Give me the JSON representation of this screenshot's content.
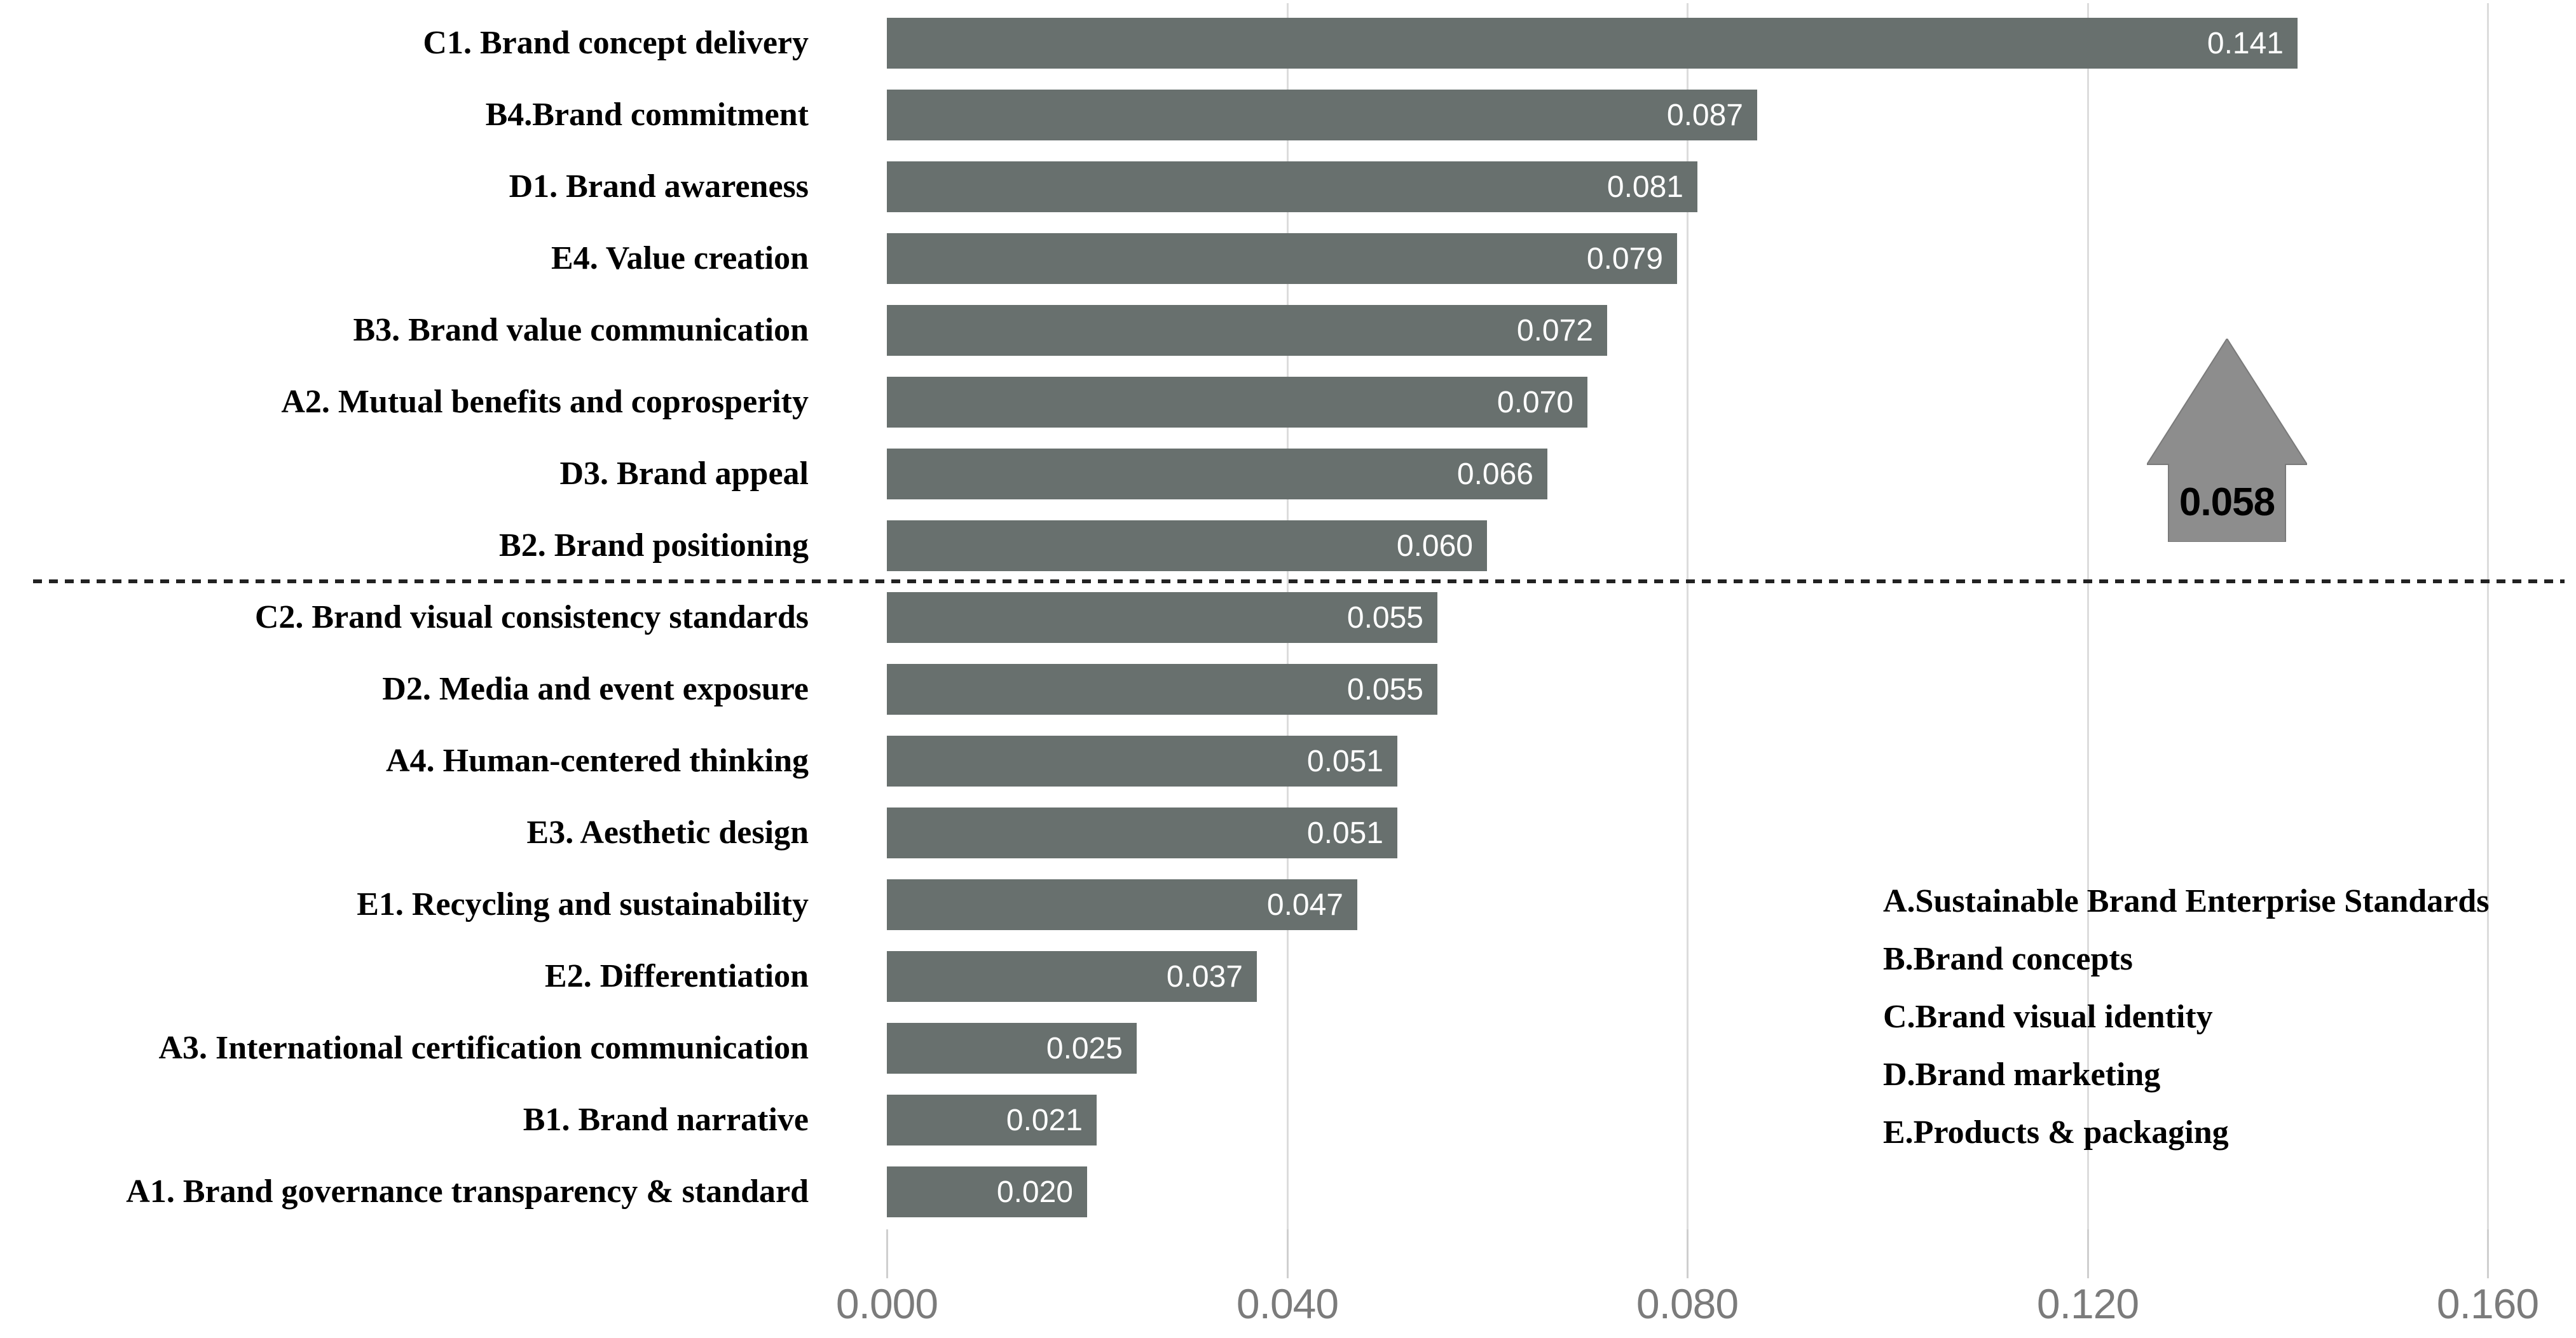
{
  "chart_data": {
    "type": "bar",
    "orientation": "horizontal",
    "title": "",
    "xlabel": "",
    "ylabel": "",
    "xlim": [
      0.0,
      0.16
    ],
    "grid": "vertical-gridlines-on",
    "legend_position": "right-middle",
    "x_ticks": [
      {
        "value": 0.0,
        "label": "0.000"
      },
      {
        "value": 0.04,
        "label": "0.040"
      },
      {
        "value": 0.08,
        "label": "0.080"
      },
      {
        "value": 0.12,
        "label": "0.120"
      },
      {
        "value": 0.16,
        "label": "0.160"
      }
    ],
    "bars": [
      {
        "label": "C1. Brand concept delivery",
        "value": 0.141,
        "value_label": "0.141"
      },
      {
        "label": "B4.Brand commitment",
        "value": 0.087,
        "value_label": "0.087"
      },
      {
        "label": "D1. Brand awareness",
        "value": 0.081,
        "value_label": "0.081"
      },
      {
        "label": "E4. Value creation",
        "value": 0.079,
        "value_label": "0.079"
      },
      {
        "label": "B3. Brand value communication",
        "value": 0.072,
        "value_label": "0.072"
      },
      {
        "label": "A2. Mutual benefits and coprosperity",
        "value": 0.07,
        "value_label": "0.070"
      },
      {
        "label": "D3. Brand appeal",
        "value": 0.066,
        "value_label": "0.066"
      },
      {
        "label": "B2. Brand positioning",
        "value": 0.06,
        "value_label": "0.060"
      },
      {
        "label": "C2. Brand visual consistency standards",
        "value": 0.055,
        "value_label": "0.055"
      },
      {
        "label": "D2. Media and event exposure",
        "value": 0.055,
        "value_label": "0.055"
      },
      {
        "label": "A4. Human-centered thinking",
        "value": 0.051,
        "value_label": "0.051"
      },
      {
        "label": "E3. Aesthetic design",
        "value": 0.051,
        "value_label": "0.051"
      },
      {
        "label": "E1. Recycling and sustainability",
        "value": 0.047,
        "value_label": "0.047"
      },
      {
        "label": "E2. Differentiation",
        "value": 0.037,
        "value_label": "0.037"
      },
      {
        "label": "A3. International certification communication",
        "value": 0.025,
        "value_label": "0.025"
      },
      {
        "label": "B1. Brand narrative",
        "value": 0.021,
        "value_label": "0.021"
      },
      {
        "label": "A1. Brand governance transparency & standard",
        "value": 0.02,
        "value_label": "0.020"
      }
    ],
    "separator": {
      "style": "dashed-horizontal-line",
      "value": 0.058,
      "after_category_index": 7
    },
    "annotation": {
      "shape": "up-arrow",
      "label": "0.058"
    },
    "legend": {
      "items": [
        {
          "label": "A.Sustainable Brand Enterprise Standards"
        },
        {
          "label": "B.Brand concepts"
        },
        {
          "label": "C.Brand visual identity"
        },
        {
          "label": "D.Brand marketing"
        },
        {
          "label": "E.Products & packaging"
        }
      ]
    },
    "colors": {
      "bar_fill": "#68706e",
      "bar_value_text": "#ffffff",
      "gridline": "#dcdcdc",
      "axis_tick_text": "#7b7b7b",
      "category_text": "#000000",
      "separator_line": "#222222",
      "arrow_fill": "#8d8d8d",
      "arrow_text": "#000000",
      "legend_text": "#000000",
      "background": "#ffffff"
    }
  }
}
